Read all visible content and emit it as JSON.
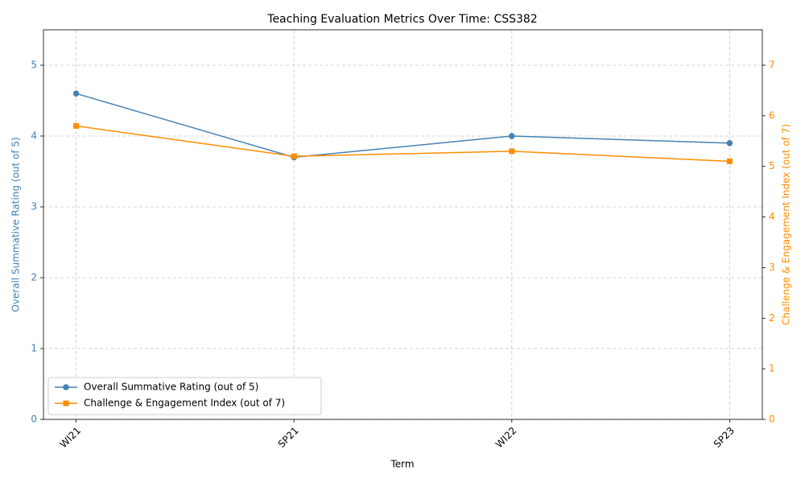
{
  "chart_data": {
    "type": "line",
    "title": "Teaching Evaluation Metrics Over Time: CSS382",
    "x_label": "Term",
    "y_label": "Overall Summative Rating (out of 5)",
    "y2_label": "Challenge & Engagement Index (out of 7)",
    "categories": [
      "WI21",
      "SP21",
      "WI22",
      "SP23"
    ],
    "series": [
      {
        "name": "Overall Summative Rating (out of 5)",
        "color": "#4682b4",
        "marker": "circle",
        "values": [
          4.6,
          3.7,
          4.0,
          3.9
        ]
      },
      {
        "name": "Challenge & Engagement Index (out of 7)",
        "color": "#ff8c00",
        "marker": "square",
        "axis": "y2",
        "values": [
          5.8,
          5.2,
          5.3,
          5.1
        ]
      }
    ],
    "ylim": [
      0,
      5.5
    ],
    "yticks": [
      0,
      1,
      2,
      3,
      4,
      5
    ],
    "y2lim": [
      0,
      7.7
    ],
    "y2ticks": [
      0,
      1,
      2,
      3,
      4,
      5,
      6,
      7
    ],
    "grid": true,
    "legend": "lower left"
  }
}
